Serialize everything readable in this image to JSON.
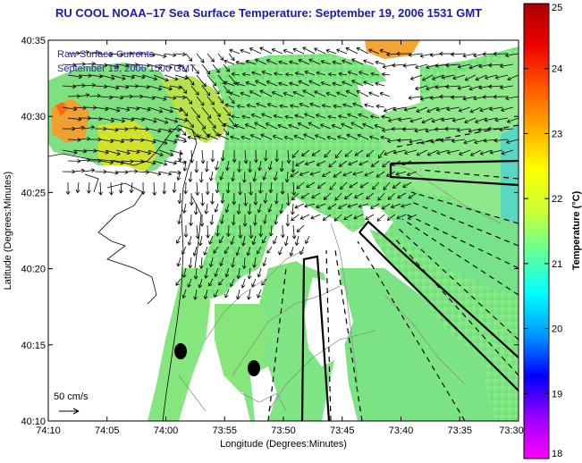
{
  "header": {
    "title": "RU COOL  NOAA–17  Sea Surface Temperature:  September 19, 2006 1531 GMT"
  },
  "annotations": {
    "currents_label": "Raw Surface Currents",
    "currents_time": "September 19, 2006 1500 GMT",
    "scale_label": "50 cm/s"
  },
  "axes": {
    "xlabel": "Longitude (Degrees:Minutes)",
    "ylabel": "Latitude (Degrees:Minutes)",
    "xticks": [
      "74:10",
      "74:05",
      "74:00",
      "73:55",
      "73:50",
      "73:45",
      "73:40",
      "73:35",
      "73:30"
    ],
    "yticks": [
      "40:35",
      "40:30",
      "40:25",
      "40:20",
      "40:15",
      "40:10"
    ]
  },
  "colorbar": {
    "label": "Temperature (°C)",
    "min": 18,
    "max": 25,
    "ticks": [
      "25",
      "24",
      "23",
      "22",
      "21",
      "20",
      "19",
      "18"
    ],
    "stops": [
      "#ff00ff",
      "#9900ff",
      "#0000ff",
      "#0099ff",
      "#00ffff",
      "#66ff99",
      "#ccff33",
      "#ffff00",
      "#ffaa00",
      "#ff5500",
      "#ee0000",
      "#aa0000"
    ]
  },
  "colors": {
    "sst_dominant": "#7fe67f",
    "sst_warm": "#f0a030",
    "land": "#ffffff",
    "arrow": "#000000",
    "title": "#1a1aa8"
  }
}
